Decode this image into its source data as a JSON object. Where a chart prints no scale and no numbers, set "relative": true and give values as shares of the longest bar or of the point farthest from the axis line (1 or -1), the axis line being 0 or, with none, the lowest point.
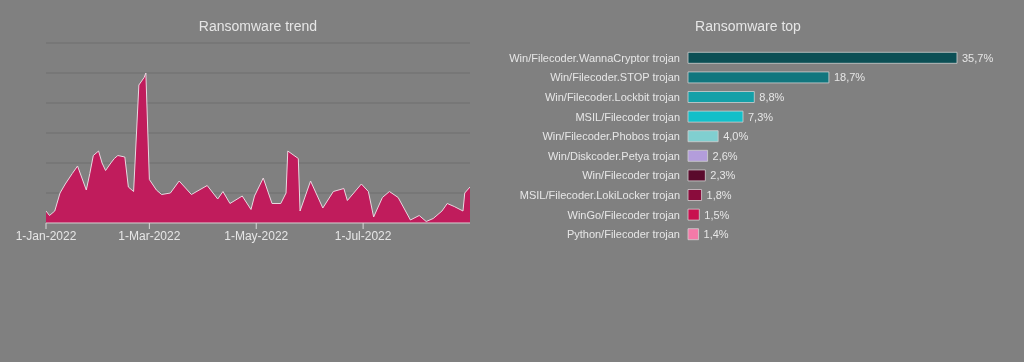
{
  "chart_data": [
    {
      "type": "area",
      "title": "Ransomware trend",
      "relative": true,
      "grid": "y",
      "color": "#c01c5c",
      "x": [
        "2022-01-01",
        "2022-01-03",
        "2022-01-06",
        "2022-01-09",
        "2022-01-12",
        "2022-01-16",
        "2022-01-19",
        "2022-01-24",
        "2022-01-26",
        "2022-01-28",
        "2022-01-31",
        "2022-02-02",
        "2022-02-04",
        "2022-02-07",
        "2022-02-09",
        "2022-02-11",
        "2022-02-15",
        "2022-02-17",
        "2022-02-20",
        "2022-02-23",
        "2022-02-26",
        "2022-02-27",
        "2022-03-01",
        "2022-03-05",
        "2022-03-08",
        "2022-03-13",
        "2022-03-18",
        "2022-03-25",
        "2022-04-03",
        "2022-04-09",
        "2022-04-12",
        "2022-04-16",
        "2022-04-23",
        "2022-04-28",
        "2022-04-30",
        "2022-05-05",
        "2022-05-10",
        "2022-05-15",
        "2022-05-18",
        "2022-05-19",
        "2022-05-25",
        "2022-05-26",
        "2022-06-01",
        "2022-06-08",
        "2022-06-14",
        "2022-06-20",
        "2022-06-22",
        "2022-06-30",
        "2022-07-04",
        "2022-07-07",
        "2022-07-12",
        "2022-07-16",
        "2022-07-21",
        "2022-07-28",
        "2022-08-02",
        "2022-08-06",
        "2022-08-10",
        "2022-08-15",
        "2022-08-18",
        "2022-08-22",
        "2022-08-27",
        "2022-08-28",
        "2022-08-31"
      ],
      "values": [
        0.08,
        0.05,
        0.08,
        0.2,
        0.26,
        0.33,
        0.38,
        0.22,
        0.33,
        0.45,
        0.48,
        0.4,
        0.35,
        0.4,
        0.43,
        0.45,
        0.44,
        0.24,
        0.21,
        0.92,
        0.97,
        1,
        0.29,
        0.22,
        0.19,
        0.2,
        0.28,
        0.19,
        0.25,
        0.16,
        0.21,
        0.13,
        0.18,
        0.09,
        0.18,
        0.3,
        0.13,
        0.13,
        0.2,
        0.48,
        0.43,
        0.08,
        0.28,
        0.1,
        0.21,
        0.23,
        0.15,
        0.26,
        0.21,
        0.04,
        0.17,
        0.21,
        0.17,
        0.02,
        0.05,
        0.01,
        0.03,
        0.08,
        0.13,
        0.11,
        0.08,
        0.2,
        0.24
      ],
      "xlim": [
        "2022-01-01",
        "2022-08-31"
      ],
      "xticks": [
        {
          "value": "2022-01-01",
          "label": "1-Jan-2022"
        },
        {
          "value": "2022-03-01",
          "label": "1-Mar-2022"
        },
        {
          "value": "2022-05-01",
          "label": "1-May-2022"
        },
        {
          "value": "2022-07-01",
          "label": "1-Jul-2022"
        }
      ]
    },
    {
      "type": "bar",
      "orientation": "horizontal",
      "title": "Ransomware top",
      "categories": [
        "Win/Filecoder.WannaCryptor trojan",
        "Win/Filecoder.STOP trojan",
        "Win/Filecoder.Lockbit trojan",
        "MSIL/Filecoder trojan",
        "Win/Filecoder.Phobos trojan",
        "Win/Diskcoder.Petya trojan",
        "Win/Filecoder trojan",
        "MSIL/Filecoder.LokiLocker trojan",
        "WinGo/Filecoder trojan",
        "Python/Filecoder trojan"
      ],
      "values": [
        35.7,
        18.7,
        8.8,
        7.3,
        4.0,
        2.6,
        2.3,
        1.8,
        1.5,
        1.4
      ],
      "colors": [
        "#0b4f55",
        "#11767e",
        "#14a0a8",
        "#12bfc9",
        "#80cfd0",
        "#b39ddb",
        "#5a0a2c",
        "#8a0c3c",
        "#c8104f",
        "#f37aa8"
      ],
      "value_labels": [
        "35,7%",
        "18,7%",
        "8,8%",
        "7,3%",
        "4,0%",
        "2,6%",
        "2,3%",
        "1,8%",
        "1,5%",
        "1,4%"
      ]
    }
  ]
}
